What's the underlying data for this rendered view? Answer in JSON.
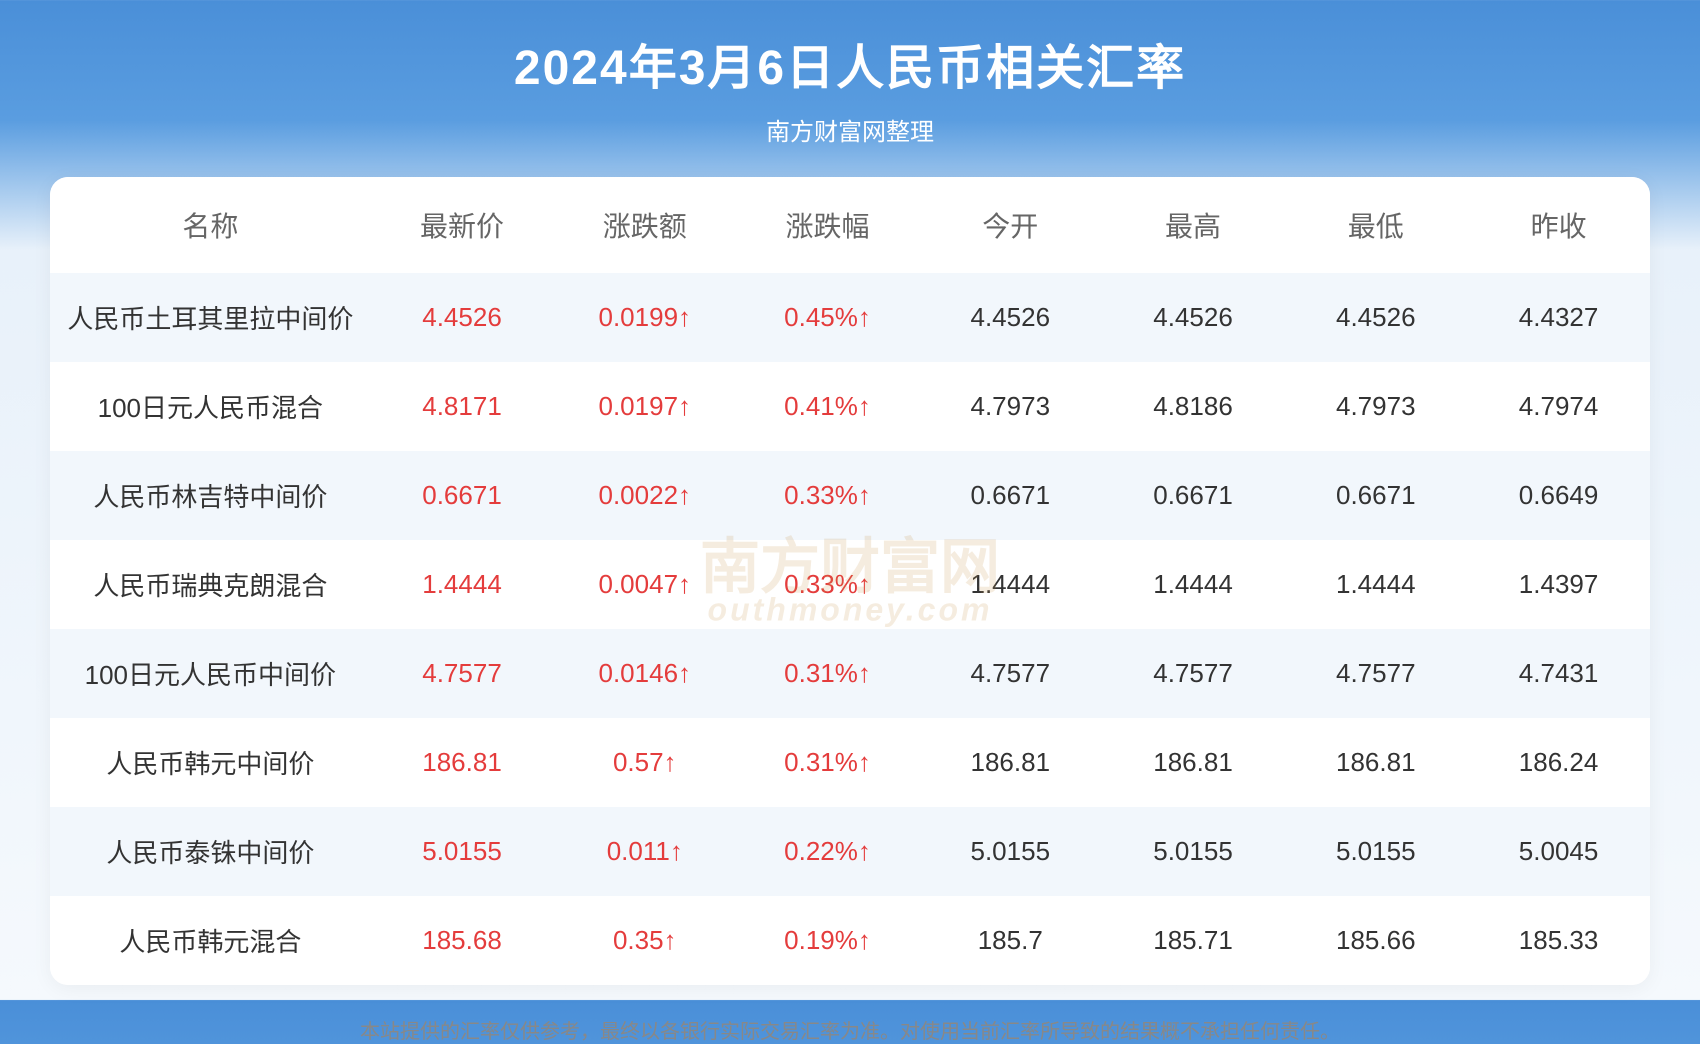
{
  "header": {
    "title": "2024年3月6日人民币相关汇率",
    "subtitle": "南方财富网整理"
  },
  "table": {
    "columns": [
      "名称",
      "最新价",
      "涨跌额",
      "涨跌幅",
      "今开",
      "最高",
      "最低",
      "昨收"
    ],
    "rows": [
      {
        "name": "人民币土耳其里拉中间价",
        "latest": "4.4526",
        "change": "0.0199↑",
        "pct": "0.45%↑",
        "open": "4.4526",
        "high": "4.4526",
        "low": "4.4526",
        "prev": "4.4327"
      },
      {
        "name": "100日元人民币混合",
        "latest": "4.8171",
        "change": "0.0197↑",
        "pct": "0.41%↑",
        "open": "4.7973",
        "high": "4.8186",
        "low": "4.7973",
        "prev": "4.7974"
      },
      {
        "name": "人民币林吉特中间价",
        "latest": "0.6671",
        "change": "0.0022↑",
        "pct": "0.33%↑",
        "open": "0.6671",
        "high": "0.6671",
        "low": "0.6671",
        "prev": "0.6649"
      },
      {
        "name": "人民币瑞典克朗混合",
        "latest": "1.4444",
        "change": "0.0047↑",
        "pct": "0.33%↑",
        "open": "1.4444",
        "high": "1.4444",
        "low": "1.4444",
        "prev": "1.4397"
      },
      {
        "name": "100日元人民币中间价",
        "latest": "4.7577",
        "change": "0.0146↑",
        "pct": "0.31%↑",
        "open": "4.7577",
        "high": "4.7577",
        "low": "4.7577",
        "prev": "4.7431"
      },
      {
        "name": "人民币韩元中间价",
        "latest": "186.81",
        "change": "0.57↑",
        "pct": "0.31%↑",
        "open": "186.81",
        "high": "186.81",
        "low": "186.81",
        "prev": "186.24"
      },
      {
        "name": "人民币泰铢中间价",
        "latest": "5.0155",
        "change": "0.011↑",
        "pct": "0.22%↑",
        "open": "5.0155",
        "high": "5.0155",
        "low": "5.0155",
        "prev": "5.0045"
      },
      {
        "name": "人民币韩元混合",
        "latest": "185.68",
        "change": "0.35↑",
        "pct": "0.19%↑",
        "open": "185.7",
        "high": "185.71",
        "low": "185.66",
        "prev": "185.33"
      }
    ]
  },
  "footer": {
    "disclaimer": "本站提供的汇率仅供参考，最终以各银行实际交易汇率为准。对使用当前汇率所导致的结果概不承担任何责任。"
  },
  "watermark": {
    "main": "南方财富网",
    "sub": "outhmoney.com"
  },
  "colors": {
    "header_gradient_top": "#4a8fd8",
    "row_odd_bg": "#f2f7fc",
    "row_even_bg": "#ffffff",
    "red_text": "#e43c3c",
    "normal_text": "#333333",
    "header_text": "#666666",
    "footer_text": "#888888"
  }
}
